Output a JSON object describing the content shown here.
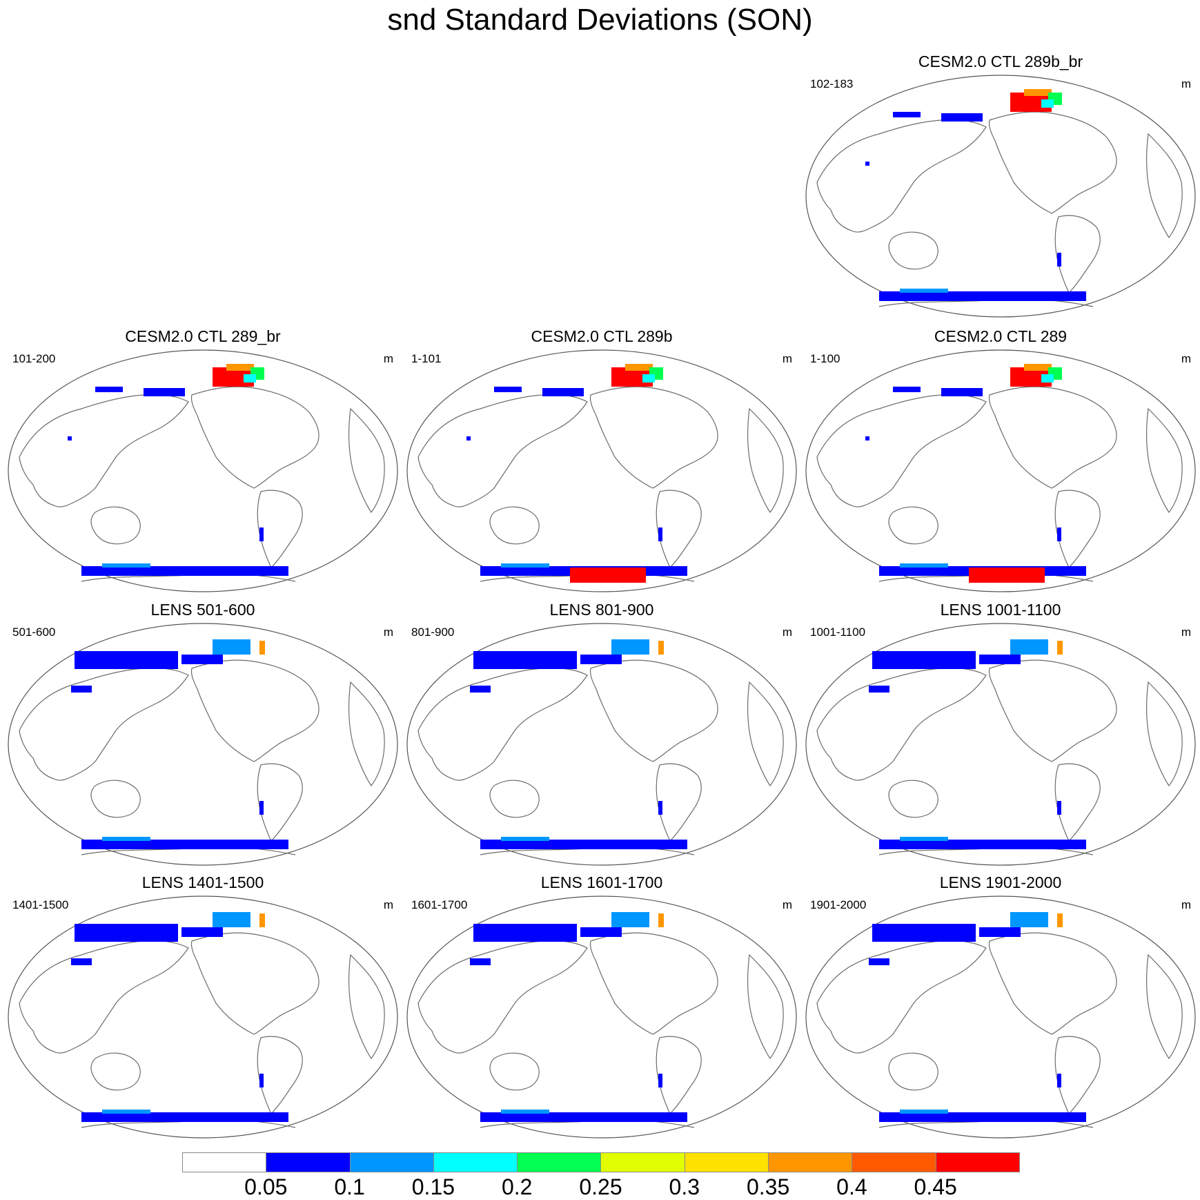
{
  "figure": {
    "title": "snd Standard Deviations (SON)"
  },
  "panels": [
    {
      "id": "p-102-183",
      "title": "CESM2.0 CTL 289b_br",
      "range": "102-183",
      "units": "m",
      "col": 2,
      "row": 0,
      "antarctic_red": false,
      "nh_intensity": "high"
    },
    {
      "id": "p-101-200",
      "title": "CESM2.0 CTL 289_br",
      "range": "101-200",
      "units": "m",
      "col": 0,
      "row": 1,
      "antarctic_red": false,
      "nh_intensity": "high"
    },
    {
      "id": "p-1-101",
      "title": "CESM2.0 CTL 289b",
      "range": "1-101",
      "units": "m",
      "col": 1,
      "row": 1,
      "antarctic_red": true,
      "nh_intensity": "high"
    },
    {
      "id": "p-1-100",
      "title": "CESM2.0 CTL 289",
      "range": "1-100",
      "units": "m",
      "col": 2,
      "row": 1,
      "antarctic_red": true,
      "nh_intensity": "high"
    },
    {
      "id": "p-501-600",
      "title": "LENS 501-600",
      "range": "501-600",
      "units": "m",
      "col": 0,
      "row": 2,
      "antarctic_red": false,
      "nh_intensity": "broad"
    },
    {
      "id": "p-801-900",
      "title": "LENS 801-900",
      "range": "801-900",
      "units": "m",
      "col": 1,
      "row": 2,
      "antarctic_red": false,
      "nh_intensity": "broad"
    },
    {
      "id": "p-1001-1100",
      "title": "LENS 1001-1100",
      "range": "1001-1100",
      "units": "m",
      "col": 2,
      "row": 2,
      "antarctic_red": false,
      "nh_intensity": "broad"
    },
    {
      "id": "p-1401-1500",
      "title": "LENS 1401-1500",
      "range": "1401-1500",
      "units": "m",
      "col": 0,
      "row": 3,
      "antarctic_red": false,
      "nh_intensity": "broad"
    },
    {
      "id": "p-1601-1700",
      "title": "LENS 1601-1700",
      "range": "1601-1700",
      "units": "m",
      "col": 1,
      "row": 3,
      "antarctic_red": false,
      "nh_intensity": "broad"
    },
    {
      "id": "p-1901-2000",
      "title": "LENS 1901-2000",
      "range": "1901-2000",
      "units": "m",
      "col": 2,
      "row": 3,
      "antarctic_red": false,
      "nh_intensity": "broad"
    }
  ],
  "colorbar": {
    "colors": [
      "#ffffff",
      "#0000ff",
      "#0096ff",
      "#00ffff",
      "#00ff50",
      "#e1ff00",
      "#ffe100",
      "#ff9600",
      "#ff5a00",
      "#ff0000"
    ],
    "labels": [
      "0.05",
      "0.1",
      "0.15",
      "0.2",
      "0.25",
      "0.3",
      "0.35",
      "0.4",
      "0.45"
    ]
  },
  "legend_colors": {
    "coast": "#6b6b6b",
    "outline": "#555555"
  }
}
